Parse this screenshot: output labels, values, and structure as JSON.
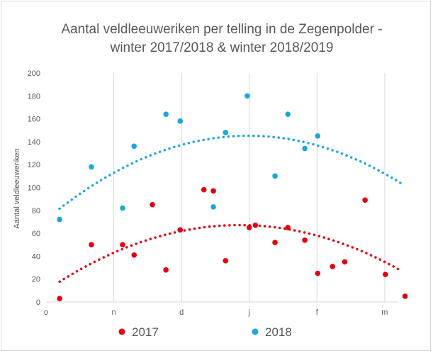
{
  "chart_data": {
    "type": "scatter",
    "title_lines": [
      "Aantal veldleeuweriken per telling in de Zegenpolder -",
      "winter 2017/2018 & winter 2018/2019"
    ],
    "ylabel": "Aantal veldleeuweriken",
    "xlabel": "",
    "ylim": [
      0,
      200
    ],
    "y_ticks": [
      0,
      20,
      40,
      60,
      80,
      100,
      120,
      140,
      160,
      180,
      200
    ],
    "x_range": [
      0,
      5.2
    ],
    "x_ticks": [
      {
        "label": "o",
        "x": 0
      },
      {
        "label": "n",
        "x": 1
      },
      {
        "label": "d",
        "x": 2
      },
      {
        "label": "j",
        "x": 3
      },
      {
        "label": "f",
        "x": 4
      },
      {
        "label": "m",
        "x": 5
      }
    ],
    "grid": "vertical",
    "legend_position": "bottom",
    "series": [
      {
        "name": "2017",
        "color": "#e3000f",
        "points": [
          {
            "x": 0.2,
            "y": 3
          },
          {
            "x": 0.67,
            "y": 50
          },
          {
            "x": 1.13,
            "y": 50
          },
          {
            "x": 1.3,
            "y": 41
          },
          {
            "x": 1.57,
            "y": 85
          },
          {
            "x": 1.77,
            "y": 28
          },
          {
            "x": 1.98,
            "y": 63
          },
          {
            "x": 2.33,
            "y": 98
          },
          {
            "x": 2.47,
            "y": 97
          },
          {
            "x": 2.65,
            "y": 36
          },
          {
            "x": 3.0,
            "y": 65
          },
          {
            "x": 3.09,
            "y": 67
          },
          {
            "x": 3.38,
            "y": 52
          },
          {
            "x": 3.57,
            "y": 65
          },
          {
            "x": 3.82,
            "y": 54
          },
          {
            "x": 4.01,
            "y": 25
          },
          {
            "x": 4.23,
            "y": 31
          },
          {
            "x": 4.41,
            "y": 35
          },
          {
            "x": 4.71,
            "y": 89
          },
          {
            "x": 5.01,
            "y": 24
          },
          {
            "x": 5.3,
            "y": 5
          }
        ],
        "trend": {
          "type": "polynomial",
          "order": 2,
          "x_from": 0.2,
          "x_to": 5.25,
          "coef": [
            10.0,
            40.0,
            -7.0
          ]
        }
      },
      {
        "name": "2018",
        "color": "#1ba7db",
        "points": [
          {
            "x": 0.2,
            "y": 72
          },
          {
            "x": 0.67,
            "y": 118
          },
          {
            "x": 1.13,
            "y": 82
          },
          {
            "x": 1.3,
            "y": 136
          },
          {
            "x": 1.77,
            "y": 164
          },
          {
            "x": 1.98,
            "y": 158
          },
          {
            "x": 2.47,
            "y": 83
          },
          {
            "x": 2.65,
            "y": 148
          },
          {
            "x": 2.97,
            "y": 180
          },
          {
            "x": 3.38,
            "y": 110
          },
          {
            "x": 3.57,
            "y": 164
          },
          {
            "x": 3.82,
            "y": 134
          },
          {
            "x": 4.01,
            "y": 145
          }
        ],
        "trend": {
          "type": "polynomial",
          "order": 2,
          "x_from": 0.2,
          "x_to": 5.25,
          "coef": [
            72.0,
            49.0,
            -8.2
          ]
        }
      }
    ]
  }
}
